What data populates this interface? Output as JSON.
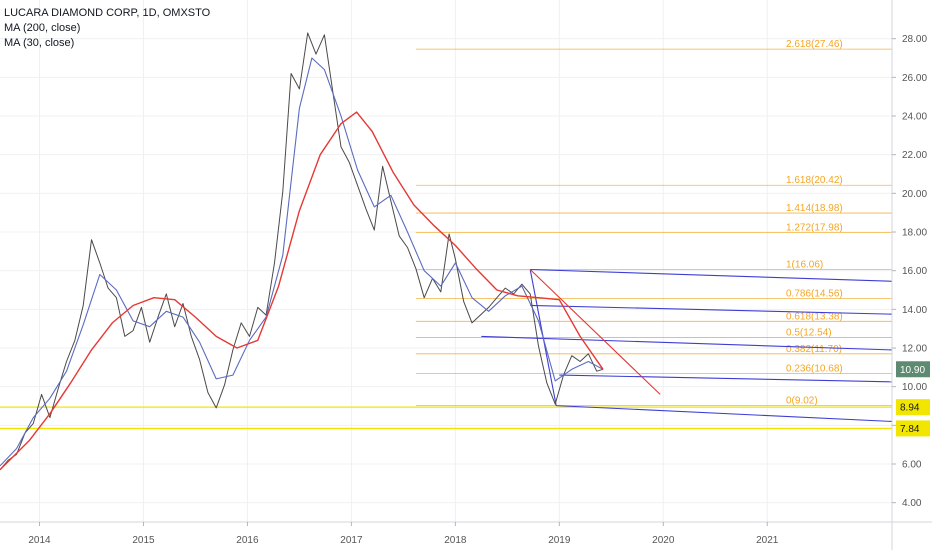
{
  "legend": {
    "symbol": "LUCARA DIAMOND CORP, 1D, OMXSTO",
    "ma200": "MA (200, close)",
    "ma30": "MA (30, close)"
  },
  "colors": {
    "price": "#4a4a4a",
    "ma200": "#e53935",
    "ma30": "#5c6bc0",
    "fib": "#f5a623",
    "trend": "#3d3dd6",
    "support": "#f2e600",
    "last_badge": "#5e8a72",
    "grid": "#eef0f3"
  },
  "chart_data": {
    "type": "line",
    "title": "LUCARA DIAMOND CORP, 1D, OMXSTO",
    "y_axis": {
      "position": "right",
      "range": [
        3.0,
        30.0
      ],
      "ticks": [
        "4.00",
        "6.00",
        "8.00",
        "10.00",
        "12.00",
        "14.00",
        "16.00",
        "18.00",
        "20.00",
        "22.00",
        "24.00",
        "26.00",
        "28.00"
      ]
    },
    "x_axis": {
      "range": [
        2013.62,
        2022.2
      ],
      "ticks": [
        {
          "label": "2014",
          "value": 2014.0
        },
        {
          "label": "2015",
          "value": 2015.0
        },
        {
          "label": "2016",
          "value": 2016.0
        },
        {
          "label": "2017",
          "value": 2017.0
        },
        {
          "label": "2018",
          "value": 2018.0
        },
        {
          "label": "2019",
          "value": 2019.0
        },
        {
          "label": "2020",
          "value": 2020.0
        },
        {
          "label": "2021",
          "value": 2021.0
        }
      ]
    },
    "grid": true,
    "series": [
      {
        "name": "price",
        "x": [
          2013.62,
          2013.7,
          2013.78,
          2013.86,
          2013.94,
          2014.02,
          2014.1,
          2014.18,
          2014.26,
          2014.34,
          2014.42,
          2014.5,
          2014.58,
          2014.66,
          2014.74,
          2014.82,
          2014.9,
          2014.98,
          2015.06,
          2015.14,
          2015.22,
          2015.3,
          2015.38,
          2015.46,
          2015.54,
          2015.62,
          2015.7,
          2015.78,
          2015.86,
          2015.94,
          2016.02,
          2016.1,
          2016.18,
          2016.26,
          2016.34,
          2016.42,
          2016.5,
          2016.58,
          2016.66,
          2016.74,
          2016.82,
          2016.9,
          2016.98,
          2017.06,
          2017.14,
          2017.22,
          2017.3,
          2017.38,
          2017.46,
          2017.54,
          2017.62,
          2017.7,
          2017.78,
          2017.86,
          2017.94,
          2018.0,
          2018.08,
          2018.16,
          2018.24,
          2018.32,
          2018.4,
          2018.48,
          2018.56,
          2018.64,
          2018.72,
          2018.8,
          2018.88,
          2018.96,
          2019.04,
          2019.12,
          2019.2,
          2019.28,
          2019.36,
          2019.42
        ],
        "y": [
          5.7,
          6.2,
          6.5,
          7.6,
          8.1,
          9.6,
          8.4,
          9.9,
          11.3,
          12.4,
          14.2,
          17.6,
          16.4,
          15.1,
          14.6,
          12.6,
          12.9,
          14.1,
          12.3,
          13.6,
          14.8,
          13.1,
          14.3,
          12.6,
          11.4,
          9.7,
          8.9,
          10.1,
          11.9,
          13.3,
          12.6,
          14.1,
          13.7,
          16.4,
          20.1,
          26.2,
          25.4,
          28.3,
          27.2,
          28.2,
          25.3,
          22.4,
          21.6,
          20.4,
          19.2,
          18.1,
          21.4,
          19.6,
          17.8,
          17.2,
          16.1,
          14.6,
          15.6,
          14.9,
          17.9,
          16.6,
          14.4,
          13.3,
          13.7,
          14.1,
          14.6,
          15.1,
          14.8,
          15.3,
          14.8,
          12.1,
          10.2,
          9.1,
          10.6,
          11.6,
          11.3,
          11.7,
          10.8,
          10.9
        ]
      },
      {
        "name": "MA (30, close)",
        "x": [
          2013.62,
          2013.78,
          2013.94,
          2014.1,
          2014.26,
          2014.42,
          2014.58,
          2014.74,
          2014.9,
          2015.06,
          2015.22,
          2015.38,
          2015.54,
          2015.7,
          2015.86,
          2016.02,
          2016.18,
          2016.34,
          2016.5,
          2016.62,
          2016.74,
          2016.9,
          2017.06,
          2017.22,
          2017.38,
          2017.54,
          2017.7,
          2017.86,
          2018.0,
          2018.16,
          2018.32,
          2018.48,
          2018.64,
          2018.8,
          2018.96,
          2019.12,
          2019.28,
          2019.42
        ],
        "y": [
          5.9,
          6.8,
          8.4,
          9.4,
          10.8,
          13.2,
          15.8,
          15.0,
          13.4,
          13.1,
          13.9,
          13.6,
          12.3,
          10.4,
          10.6,
          12.4,
          13.6,
          16.8,
          24.4,
          27.0,
          26.4,
          24.0,
          21.2,
          19.3,
          19.9,
          18.0,
          16.0,
          15.2,
          16.4,
          14.6,
          13.9,
          14.7,
          15.2,
          13.4,
          10.3,
          10.9,
          11.3,
          10.9
        ]
      },
      {
        "name": "MA (200, close)",
        "x": [
          2013.62,
          2013.9,
          2014.1,
          2014.3,
          2014.5,
          2014.7,
          2014.9,
          2015.1,
          2015.3,
          2015.5,
          2015.7,
          2015.9,
          2016.1,
          2016.3,
          2016.5,
          2016.7,
          2016.9,
          2017.05,
          2017.2,
          2017.4,
          2017.6,
          2017.8,
          2018.0,
          2018.2,
          2018.4,
          2018.6,
          2018.8,
          2019.0,
          2019.2,
          2019.42
        ],
        "y": [
          5.7,
          7.2,
          8.6,
          10.2,
          11.9,
          13.3,
          14.2,
          14.6,
          14.5,
          13.6,
          12.6,
          12.0,
          12.4,
          15.2,
          19.1,
          22.0,
          23.6,
          24.2,
          23.2,
          21.1,
          19.4,
          18.3,
          17.3,
          16.1,
          15.0,
          14.7,
          14.6,
          14.5,
          12.6,
          10.9
        ]
      }
    ],
    "fibonacci": {
      "x_start": 2017.62,
      "x_end": 2019.15,
      "levels": [
        {
          "ratio": "0",
          "value": 9.02,
          "label": "0(9.02)"
        },
        {
          "ratio": "0.236",
          "value": 10.68,
          "label": "0.236(10.68)"
        },
        {
          "ratio": "0.382",
          "value": 11.7,
          "label": "0.382(11.70)"
        },
        {
          "ratio": "0.5",
          "value": 12.54,
          "label": "0.5(12.54)"
        },
        {
          "ratio": "0.618",
          "value": 13.38,
          "label": "0.618(13.38)"
        },
        {
          "ratio": "0.786",
          "value": 14.56,
          "label": "0.786(14.56)"
        },
        {
          "ratio": "1",
          "value": 16.06,
          "label": "1(16.06)"
        },
        {
          "ratio": "1.272",
          "value": 17.98,
          "label": "1.272(17.98)"
        },
        {
          "ratio": "1.414",
          "value": 18.98,
          "label": "1.414(18.98)"
        },
        {
          "ratio": "1.618",
          "value": 20.42,
          "label": "1.618(20.42)"
        },
        {
          "ratio": "2.618",
          "value": 27.46,
          "label": "2.618(27.46)"
        }
      ]
    },
    "trend_lines": [
      {
        "name": "channel-top",
        "x1": 2018.72,
        "y1": 16.06,
        "x2": 2022.2,
        "y2": 15.45
      },
      {
        "name": "channel-upper-mid",
        "x1": 2018.72,
        "y1": 14.2,
        "x2": 2022.2,
        "y2": 13.75
      },
      {
        "name": "channel-lower-mid",
        "x1": 2018.25,
        "y1": 12.6,
        "x2": 2022.2,
        "y2": 11.9
      },
      {
        "name": "channel-low",
        "x1": 2019.0,
        "y1": 10.6,
        "x2": 2022.2,
        "y2": 10.25
      },
      {
        "name": "channel-bottom",
        "x1": 2018.97,
        "y1": 9.02,
        "x2": 2022.2,
        "y2": 8.2
      },
      {
        "name": "fib-leg-down",
        "x1": 2018.72,
        "y1": 16.06,
        "x2": 2018.97,
        "y2": 9.02
      }
    ],
    "down_trendline": {
      "x1": 2018.72,
      "y1": 16.06,
      "x2": 2019.97,
      "y2": 9.6
    },
    "support_lines": [
      {
        "value": 8.94,
        "label": "8.94"
      },
      {
        "value": 7.84,
        "label": "7.84"
      }
    ],
    "last_price": {
      "value": 10.9,
      "label": "10.90"
    }
  }
}
